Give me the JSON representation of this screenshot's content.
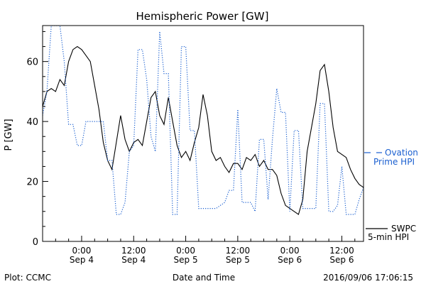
{
  "chart_data": {
    "type": "line",
    "title": "Hemispheric Power [GW]",
    "xlabel": "Date and Time",
    "ylabel": "P [GW]",
    "xlim": [
      "2016-09-03T15:00",
      "2016-09-06T17:00"
    ],
    "ylim": [
      0,
      72
    ],
    "yticks": [
      0,
      20,
      40,
      60
    ],
    "x_ticks": [
      {
        "x": "2016-09-04T00:00",
        "line1": "0:00",
        "line2": "Sep 4"
      },
      {
        "x": "2016-09-04T12:00",
        "line1": "12:00",
        "line2": "Sep 4"
      },
      {
        "x": "2016-09-05T00:00",
        "line1": "0:00",
        "line2": "Sep 5"
      },
      {
        "x": "2016-09-05T12:00",
        "line1": "12:00",
        "line2": "Sep 5"
      },
      {
        "x": "2016-09-06T00:00",
        "line1": "0:00",
        "line2": "Sep 6"
      },
      {
        "x": "2016-09-06T12:00",
        "line1": "12:00",
        "line2": "Sep 6"
      }
    ],
    "grid": false,
    "legend_position": "right",
    "series": [
      {
        "name": "SWPC 5-min HPI",
        "legend_line1": "SWPC",
        "legend_line2": "5-min HPI",
        "color": "#000000",
        "style": "solid",
        "points": [
          [
            "2016-09-03T15:00",
            45
          ],
          [
            "2016-09-03T16:00",
            50
          ],
          [
            "2016-09-03T17:00",
            51
          ],
          [
            "2016-09-03T18:00",
            50
          ],
          [
            "2016-09-03T19:00",
            54
          ],
          [
            "2016-09-03T20:00",
            52
          ],
          [
            "2016-09-03T21:00",
            60
          ],
          [
            "2016-09-03T22:00",
            64
          ],
          [
            "2016-09-03T23:00",
            65
          ],
          [
            "2016-09-04T00:00",
            64
          ],
          [
            "2016-09-04T01:00",
            62
          ],
          [
            "2016-09-04T02:00",
            60
          ],
          [
            "2016-09-04T03:00",
            52
          ],
          [
            "2016-09-04T04:00",
            44
          ],
          [
            "2016-09-04T05:00",
            33
          ],
          [
            "2016-09-04T06:00",
            27
          ],
          [
            "2016-09-04T07:00",
            24
          ],
          [
            "2016-09-04T08:00",
            33
          ],
          [
            "2016-09-04T09:00",
            42
          ],
          [
            "2016-09-04T10:00",
            34
          ],
          [
            "2016-09-04T11:00",
            30
          ],
          [
            "2016-09-04T12:00",
            33
          ],
          [
            "2016-09-04T13:00",
            34
          ],
          [
            "2016-09-04T14:00",
            32
          ],
          [
            "2016-09-04T15:00",
            40
          ],
          [
            "2016-09-04T16:00",
            48
          ],
          [
            "2016-09-04T17:00",
            50
          ],
          [
            "2016-09-04T18:00",
            42
          ],
          [
            "2016-09-04T19:00",
            39
          ],
          [
            "2016-09-04T20:00",
            48
          ],
          [
            "2016-09-04T21:00",
            40
          ],
          [
            "2016-09-04T22:00",
            32
          ],
          [
            "2016-09-04T23:00",
            28
          ],
          [
            "2016-09-05T00:00",
            30
          ],
          [
            "2016-09-05T01:00",
            27
          ],
          [
            "2016-09-05T02:00",
            33
          ],
          [
            "2016-09-05T03:00",
            38
          ],
          [
            "2016-09-05T04:00",
            49
          ],
          [
            "2016-09-05T05:00",
            42
          ],
          [
            "2016-09-05T06:00",
            30
          ],
          [
            "2016-09-05T07:00",
            27
          ],
          [
            "2016-09-05T08:00",
            28
          ],
          [
            "2016-09-05T09:00",
            25
          ],
          [
            "2016-09-05T10:00",
            23
          ],
          [
            "2016-09-05T11:00",
            26
          ],
          [
            "2016-09-05T12:00",
            26
          ],
          [
            "2016-09-05T13:00",
            24
          ],
          [
            "2016-09-05T14:00",
            28
          ],
          [
            "2016-09-05T15:00",
            27
          ],
          [
            "2016-09-05T16:00",
            29
          ],
          [
            "2016-09-05T17:00",
            25
          ],
          [
            "2016-09-05T18:00",
            27
          ],
          [
            "2016-09-05T19:00",
            24
          ],
          [
            "2016-09-05T20:00",
            24
          ],
          [
            "2016-09-05T21:00",
            22
          ],
          [
            "2016-09-05T22:00",
            16
          ],
          [
            "2016-09-05T23:00",
            12
          ],
          [
            "2016-09-06T00:00",
            11
          ],
          [
            "2016-09-06T01:00",
            10
          ],
          [
            "2016-09-06T02:00",
            9
          ],
          [
            "2016-09-06T03:00",
            14
          ],
          [
            "2016-09-06T04:00",
            30
          ],
          [
            "2016-09-06T05:00",
            38
          ],
          [
            "2016-09-06T06:00",
            46
          ],
          [
            "2016-09-06T07:00",
            57
          ],
          [
            "2016-09-06T08:00",
            59
          ],
          [
            "2016-09-06T09:00",
            50
          ],
          [
            "2016-09-06T10:00",
            38
          ],
          [
            "2016-09-06T11:00",
            30
          ],
          [
            "2016-09-06T12:00",
            29
          ],
          [
            "2016-09-06T13:00",
            28
          ],
          [
            "2016-09-06T14:00",
            24
          ],
          [
            "2016-09-06T15:00",
            21
          ],
          [
            "2016-09-06T16:00",
            19
          ],
          [
            "2016-09-06T17:00",
            18
          ]
        ]
      },
      {
        "name": "Ovation Prime HPI",
        "legend_line1": "Ovation",
        "legend_line2": "Prime HPI",
        "color": "#1a5fd0",
        "style": "dotted",
        "points": [
          [
            "2016-09-03T15:00",
            42
          ],
          [
            "2016-09-03T16:00",
            50
          ],
          [
            "2016-09-03T17:00",
            72
          ],
          [
            "2016-09-03T18:00",
            72
          ],
          [
            "2016-09-03T19:00",
            72
          ],
          [
            "2016-09-03T20:00",
            60
          ],
          [
            "2016-09-03T21:00",
            39
          ],
          [
            "2016-09-03T22:00",
            39
          ],
          [
            "2016-09-03T23:00",
            32
          ],
          [
            "2016-09-04T00:00",
            32
          ],
          [
            "2016-09-04T01:00",
            40
          ],
          [
            "2016-09-04T02:00",
            40
          ],
          [
            "2016-09-04T03:00",
            40
          ],
          [
            "2016-09-04T04:00",
            40
          ],
          [
            "2016-09-04T05:00",
            40
          ],
          [
            "2016-09-04T06:00",
            27
          ],
          [
            "2016-09-04T07:00",
            27
          ],
          [
            "2016-09-04T08:00",
            9
          ],
          [
            "2016-09-04T09:00",
            9
          ],
          [
            "2016-09-04T10:00",
            13
          ],
          [
            "2016-09-04T11:00",
            30
          ],
          [
            "2016-09-04T12:00",
            32
          ],
          [
            "2016-09-04T13:00",
            64
          ],
          [
            "2016-09-04T14:00",
            64
          ],
          [
            "2016-09-04T15:00",
            54
          ],
          [
            "2016-09-04T16:00",
            35
          ],
          [
            "2016-09-04T17:00",
            30
          ],
          [
            "2016-09-04T18:00",
            70
          ],
          [
            "2016-09-04T19:00",
            56
          ],
          [
            "2016-09-04T20:00",
            56
          ],
          [
            "2016-09-04T21:00",
            9
          ],
          [
            "2016-09-04T22:00",
            9
          ],
          [
            "2016-09-04T23:00",
            65
          ],
          [
            "2016-09-05T00:00",
            65
          ],
          [
            "2016-09-05T01:00",
            37
          ],
          [
            "2016-09-05T02:00",
            37
          ],
          [
            "2016-09-05T03:00",
            11
          ],
          [
            "2016-09-05T04:00",
            11
          ],
          [
            "2016-09-05T05:00",
            11
          ],
          [
            "2016-09-05T06:00",
            11
          ],
          [
            "2016-09-05T07:00",
            11
          ],
          [
            "2016-09-05T08:00",
            12
          ],
          [
            "2016-09-05T09:00",
            13
          ],
          [
            "2016-09-05T10:00",
            17
          ],
          [
            "2016-09-05T11:00",
            17
          ],
          [
            "2016-09-05T12:00",
            44
          ],
          [
            "2016-09-05T13:00",
            13
          ],
          [
            "2016-09-05T14:00",
            13
          ],
          [
            "2016-09-05T15:00",
            13
          ],
          [
            "2016-09-05T16:00",
            10
          ],
          [
            "2016-09-05T17:00",
            34
          ],
          [
            "2016-09-05T18:00",
            34
          ],
          [
            "2016-09-05T19:00",
            14
          ],
          [
            "2016-09-05T20:00",
            34
          ],
          [
            "2016-09-05T21:00",
            51
          ],
          [
            "2016-09-05T22:00",
            43
          ],
          [
            "2016-09-05T23:00",
            43
          ],
          [
            "2016-09-06T00:00",
            10
          ],
          [
            "2016-09-06T01:00",
            37
          ],
          [
            "2016-09-06T02:00",
            37
          ],
          [
            "2016-09-06T03:00",
            11
          ],
          [
            "2016-09-06T04:00",
            11
          ],
          [
            "2016-09-06T05:00",
            11
          ],
          [
            "2016-09-06T06:00",
            11
          ],
          [
            "2016-09-06T07:00",
            46
          ],
          [
            "2016-09-06T08:00",
            46
          ],
          [
            "2016-09-06T09:00",
            10
          ],
          [
            "2016-09-06T10:00",
            10
          ],
          [
            "2016-09-06T11:00",
            12
          ],
          [
            "2016-09-06T12:00",
            25
          ],
          [
            "2016-09-06T13:00",
            9
          ],
          [
            "2016-09-06T14:00",
            9
          ],
          [
            "2016-09-06T15:00",
            9
          ],
          [
            "2016-09-06T16:00",
            14
          ],
          [
            "2016-09-06T17:00",
            18
          ]
        ]
      }
    ]
  },
  "footer": {
    "left": "Plot: CCMC",
    "right": "2016/09/06 17:06:15"
  }
}
